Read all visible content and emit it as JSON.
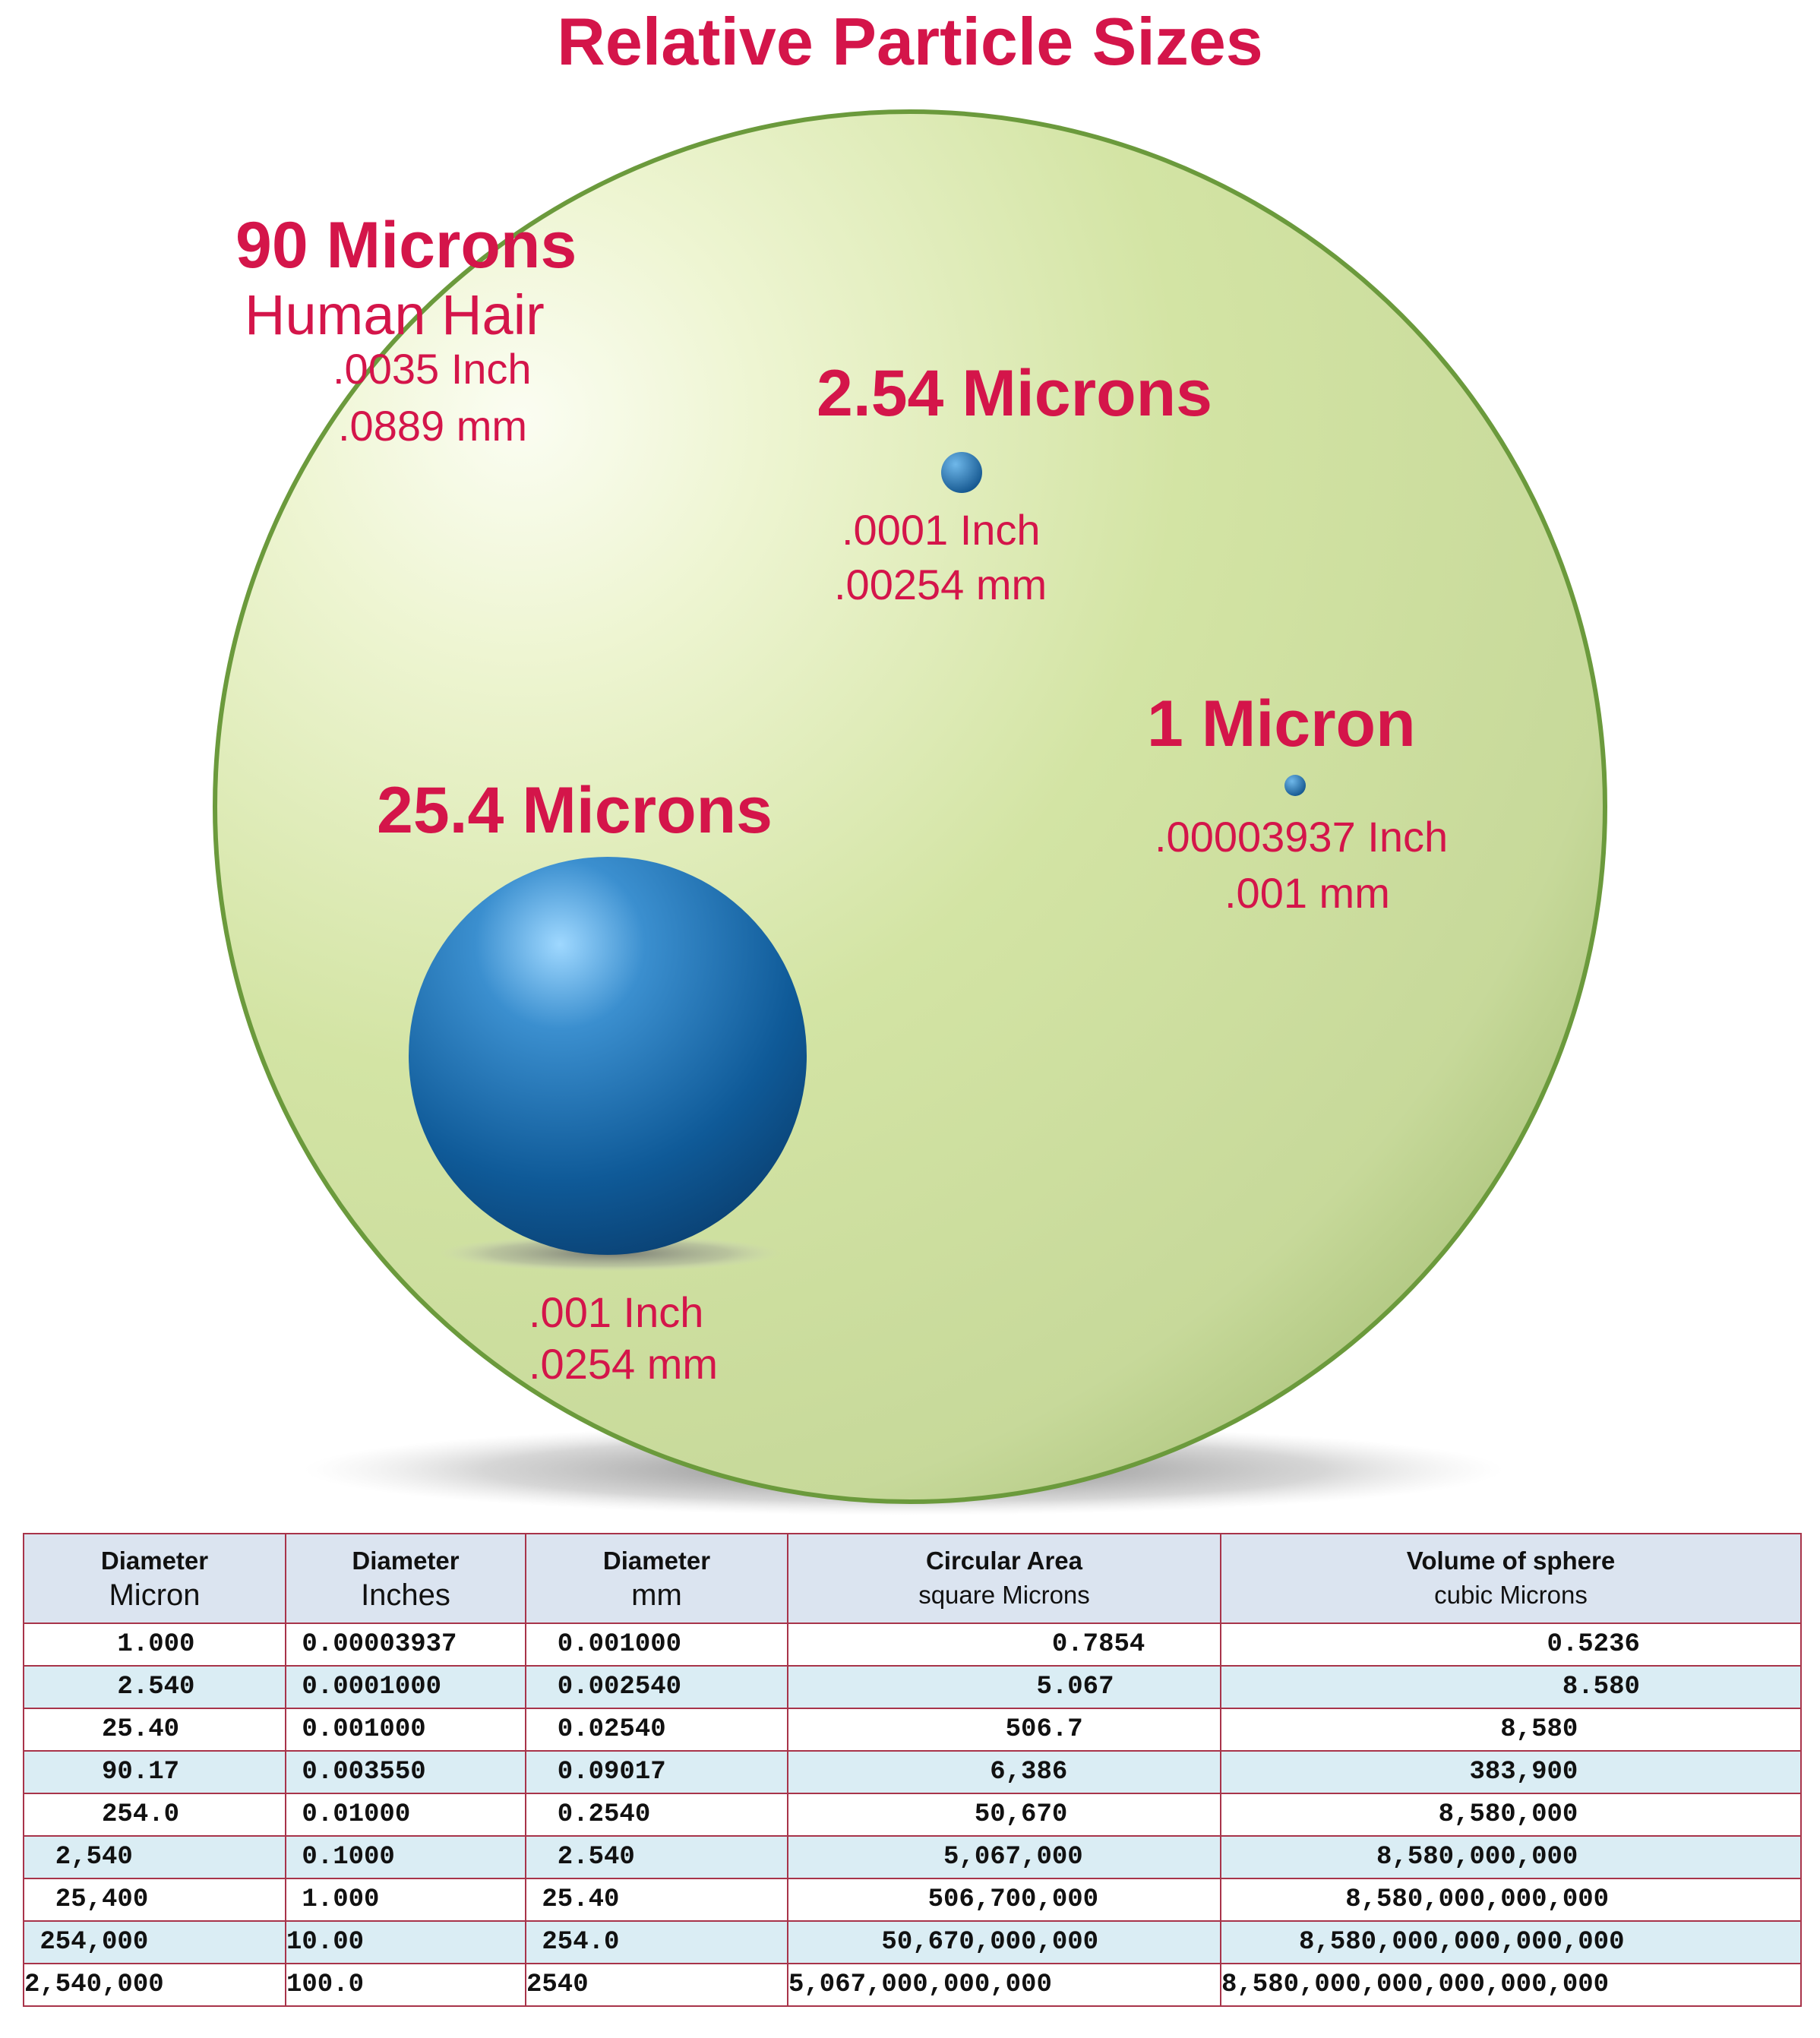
{
  "title": "Relative Particle Sizes",
  "colors": {
    "label": "#d4154a",
    "large_sphere": "#c2d98a",
    "particles": "#1f6aa5",
    "table_header": "#dbe4f0",
    "table_alt_row": "#daedf4",
    "table_border": "#a8344a"
  },
  "particles": [
    {
      "id": "hair",
      "size": "90 Microns",
      "name": "Human Hair",
      "inch": ".0035 Inch",
      "mm": ".0889 mm"
    },
    {
      "id": "p254",
      "size": "2.54 Microns",
      "inch": ".0001 Inch",
      "mm": ".00254 mm"
    },
    {
      "id": "p1",
      "size": "1 Micron",
      "inch": ".00003937 Inch",
      "mm": ".001 mm"
    },
    {
      "id": "p25",
      "size": "25.4 Microns",
      "inch": ".001 Inch",
      "mm": ".0254 mm"
    }
  ],
  "table": {
    "headers": [
      {
        "line1": "Diameter",
        "line2": "Micron"
      },
      {
        "line1": "Diameter",
        "line2": "Inches"
      },
      {
        "line1": "Diameter",
        "line2": "mm"
      },
      {
        "line1": "Circular Area",
        "line2": "square Microns"
      },
      {
        "line1": "Volume of sphere",
        "line2": "cubic Microns"
      }
    ],
    "rows": [
      [
        "      1.000",
        " 0.00003937",
        "  0.001000",
        "                 0.7854",
        "                     0.5236"
      ],
      [
        "      2.540",
        " 0.0001000",
        "  0.002540",
        "                5.067",
        "                      8.580"
      ],
      [
        "     25.40",
        " 0.001000",
        "  0.02540",
        "              506.7",
        "                  8,580"
      ],
      [
        "     90.17",
        " 0.003550",
        "  0.09017",
        "             6,386",
        "                383,900"
      ],
      [
        "     254.0",
        " 0.01000",
        "  0.2540",
        "            50,670",
        "              8,580,000"
      ],
      [
        "  2,540",
        " 0.1000",
        "  2.540",
        "          5,067,000",
        "          8,580,000,000"
      ],
      [
        "  25,400",
        " 1.000",
        " 25.40",
        "         506,700,000",
        "        8,580,000,000,000"
      ],
      [
        " 254,000",
        "10.00",
        " 254.0",
        "      50,670,000,000",
        "     8,580,000,000,000,000"
      ],
      [
        "2,540,000",
        "100.0",
        "2540",
        "5,067,000,000,000",
        "8,580,000,000,000,000,000"
      ]
    ]
  }
}
